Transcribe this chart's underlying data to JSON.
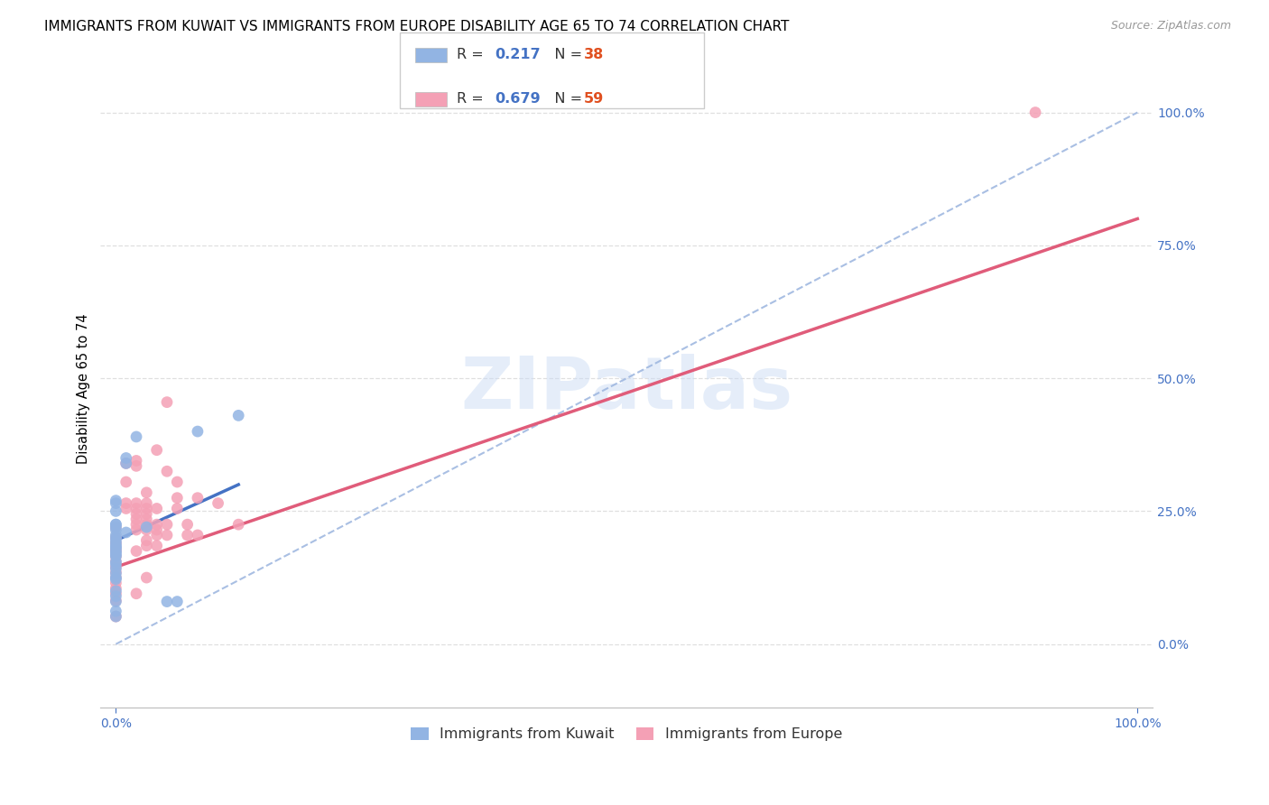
{
  "title": "IMMIGRANTS FROM KUWAIT VS IMMIGRANTS FROM EUROPE DISABILITY AGE 65 TO 74 CORRELATION CHART",
  "source": "Source: ZipAtlas.com",
  "ylabel": "Disability Age 65 to 74",
  "x_tick_labels": [
    "0.0%",
    "100.0%"
  ],
  "y_tick_labels": [
    "0.0%",
    "25.0%",
    "50.0%",
    "75.0%",
    "100.0%"
  ],
  "y_tick_positions": [
    0.0,
    0.25,
    0.5,
    0.75,
    1.0
  ],
  "xlim": [
    -0.015,
    1.015
  ],
  "ylim": [
    -0.12,
    1.08
  ],
  "kuwait_R": 0.217,
  "kuwait_N": 38,
  "europe_R": 0.679,
  "europe_N": 59,
  "kuwait_color": "#92b4e3",
  "europe_color": "#f4a0b5",
  "kuwait_line_color": "#4472c4",
  "europe_line_color": "#e05c7a",
  "trendline_ref_color": "#a0b8e0",
  "watermark": "ZIPatlas",
  "kuwait_points": [
    [
      0.0,
      0.27
    ],
    [
      0.0,
      0.265
    ],
    [
      0.0,
      0.25
    ],
    [
      0.0,
      0.225
    ],
    [
      0.0,
      0.225
    ],
    [
      0.0,
      0.22
    ],
    [
      0.0,
      0.215
    ],
    [
      0.0,
      0.205
    ],
    [
      0.0,
      0.2
    ],
    [
      0.0,
      0.195
    ],
    [
      0.0,
      0.19
    ],
    [
      0.0,
      0.185
    ],
    [
      0.0,
      0.183
    ],
    [
      0.0,
      0.18
    ],
    [
      0.0,
      0.175
    ],
    [
      0.0,
      0.172
    ],
    [
      0.0,
      0.168
    ],
    [
      0.0,
      0.165
    ],
    [
      0.0,
      0.155
    ],
    [
      0.0,
      0.15
    ],
    [
      0.0,
      0.142
    ],
    [
      0.0,
      0.133
    ],
    [
      0.0,
      0.125
    ],
    [
      0.0,
      0.122
    ],
    [
      0.0,
      0.1
    ],
    [
      0.0,
      0.09
    ],
    [
      0.0,
      0.08
    ],
    [
      0.0,
      0.062
    ],
    [
      0.0,
      0.052
    ],
    [
      0.01,
      0.35
    ],
    [
      0.01,
      0.34
    ],
    [
      0.01,
      0.21
    ],
    [
      0.02,
      0.39
    ],
    [
      0.03,
      0.22
    ],
    [
      0.05,
      0.08
    ],
    [
      0.06,
      0.08
    ],
    [
      0.08,
      0.4
    ],
    [
      0.12,
      0.43
    ]
  ],
  "europe_points": [
    [
      0.0,
      0.22
    ],
    [
      0.0,
      0.2
    ],
    [
      0.0,
      0.19
    ],
    [
      0.0,
      0.18
    ],
    [
      0.0,
      0.175
    ],
    [
      0.0,
      0.165
    ],
    [
      0.0,
      0.155
    ],
    [
      0.0,
      0.145
    ],
    [
      0.0,
      0.135
    ],
    [
      0.0,
      0.125
    ],
    [
      0.0,
      0.115
    ],
    [
      0.0,
      0.105
    ],
    [
      0.0,
      0.095
    ],
    [
      0.0,
      0.082
    ],
    [
      0.0,
      0.052
    ],
    [
      0.01,
      0.34
    ],
    [
      0.01,
      0.305
    ],
    [
      0.01,
      0.265
    ],
    [
      0.01,
      0.255
    ],
    [
      0.02,
      0.345
    ],
    [
      0.02,
      0.335
    ],
    [
      0.02,
      0.265
    ],
    [
      0.02,
      0.255
    ],
    [
      0.02,
      0.245
    ],
    [
      0.02,
      0.235
    ],
    [
      0.02,
      0.225
    ],
    [
      0.02,
      0.215
    ],
    [
      0.02,
      0.175
    ],
    [
      0.02,
      0.095
    ],
    [
      0.03,
      0.285
    ],
    [
      0.03,
      0.265
    ],
    [
      0.03,
      0.255
    ],
    [
      0.03,
      0.245
    ],
    [
      0.03,
      0.235
    ],
    [
      0.03,
      0.225
    ],
    [
      0.03,
      0.215
    ],
    [
      0.03,
      0.195
    ],
    [
      0.03,
      0.185
    ],
    [
      0.03,
      0.125
    ],
    [
      0.04,
      0.365
    ],
    [
      0.04,
      0.255
    ],
    [
      0.04,
      0.225
    ],
    [
      0.04,
      0.215
    ],
    [
      0.04,
      0.205
    ],
    [
      0.04,
      0.185
    ],
    [
      0.05,
      0.455
    ],
    [
      0.05,
      0.325
    ],
    [
      0.05,
      0.225
    ],
    [
      0.05,
      0.205
    ],
    [
      0.06,
      0.305
    ],
    [
      0.06,
      0.275
    ],
    [
      0.06,
      0.255
    ],
    [
      0.07,
      0.225
    ],
    [
      0.07,
      0.205
    ],
    [
      0.08,
      0.275
    ],
    [
      0.08,
      0.205
    ],
    [
      0.1,
      0.265
    ],
    [
      0.12,
      0.225
    ],
    [
      0.9,
      1.0
    ]
  ],
  "kuwait_trend_x": [
    0.0,
    0.12
  ],
  "kuwait_trend_y": [
    0.195,
    0.3
  ],
  "europe_trend_x": [
    0.0,
    1.0
  ],
  "europe_trend_y": [
    0.145,
    0.8
  ],
  "ref_trend_x": [
    0.0,
    1.0
  ],
  "ref_trend_y": [
    0.0,
    1.0
  ],
  "background_color": "#ffffff",
  "grid_color": "#d8d8d8",
  "title_fontsize": 11,
  "axis_label_fontsize": 10.5,
  "tick_fontsize": 10,
  "legend_fontsize": 11.5,
  "marker_size": 85,
  "legend_R_color": "#4472c4",
  "legend_N_color": "#e05020",
  "legend_label_color": "#333333"
}
